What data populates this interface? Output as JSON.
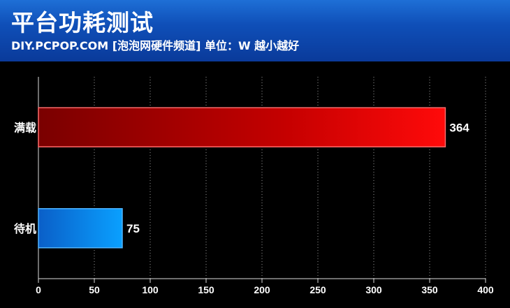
{
  "header": {
    "title": "平台功耗测试",
    "subtitle": "DIY.PCPOP.COM [泡泡网硬件频道] 单位：W  越小越好"
  },
  "chart_data": {
    "type": "bar",
    "orientation": "horizontal",
    "categories": [
      "满载",
      "待机"
    ],
    "values": [
      364,
      75
    ],
    "xlim": [
      0,
      400
    ],
    "xticks": [
      0,
      50,
      100,
      150,
      200,
      250,
      300,
      350,
      400
    ],
    "grid": "vertical-dotted",
    "colors": [
      "#e00000",
      "#1e8cf0"
    ]
  }
}
